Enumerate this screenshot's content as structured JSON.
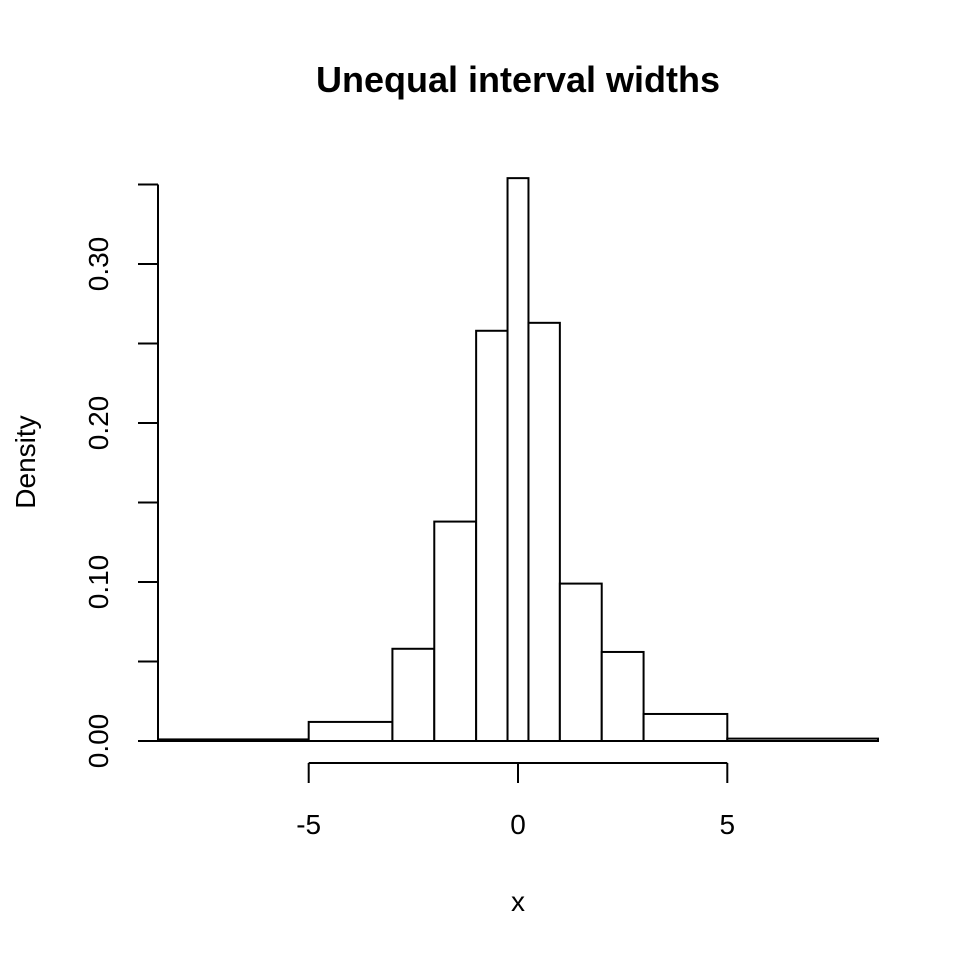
{
  "chart_data": {
    "type": "bar",
    "subtype": "histogram",
    "title": "Unequal interval widths",
    "xlabel": "x",
    "ylabel": "Density",
    "xlim": [
      -8.6,
      8.6
    ],
    "ylim": [
      0,
      0.35
    ],
    "grid": false,
    "x_ticks": [
      -5,
      0,
      5
    ],
    "x_tick_labels": [
      "-5",
      "0",
      "5"
    ],
    "y_ticks": [
      0,
      0.05,
      0.1,
      0.15,
      0.2,
      0.25,
      0.3,
      0.35
    ],
    "y_tick_labels": [
      "0.00",
      "",
      "0.10",
      "",
      "0.20",
      "",
      "0.30",
      ""
    ],
    "bins": [
      {
        "left": -8.6,
        "right": -5,
        "density": 0.001
      },
      {
        "left": -5,
        "right": -3,
        "density": 0.012
      },
      {
        "left": -3,
        "right": -2,
        "density": 0.058
      },
      {
        "left": -2,
        "right": -1,
        "density": 0.138
      },
      {
        "left": -1,
        "right": -0.25,
        "density": 0.258
      },
      {
        "left": -0.25,
        "right": 0.25,
        "density": 0.354
      },
      {
        "left": 0.25,
        "right": 1,
        "density": 0.263
      },
      {
        "left": 1,
        "right": 2,
        "density": 0.099
      },
      {
        "left": 2,
        "right": 3,
        "density": 0.056
      },
      {
        "left": 3,
        "right": 5,
        "density": 0.017
      },
      {
        "left": 5,
        "right": 8.6,
        "density": 0.0015
      }
    ]
  }
}
